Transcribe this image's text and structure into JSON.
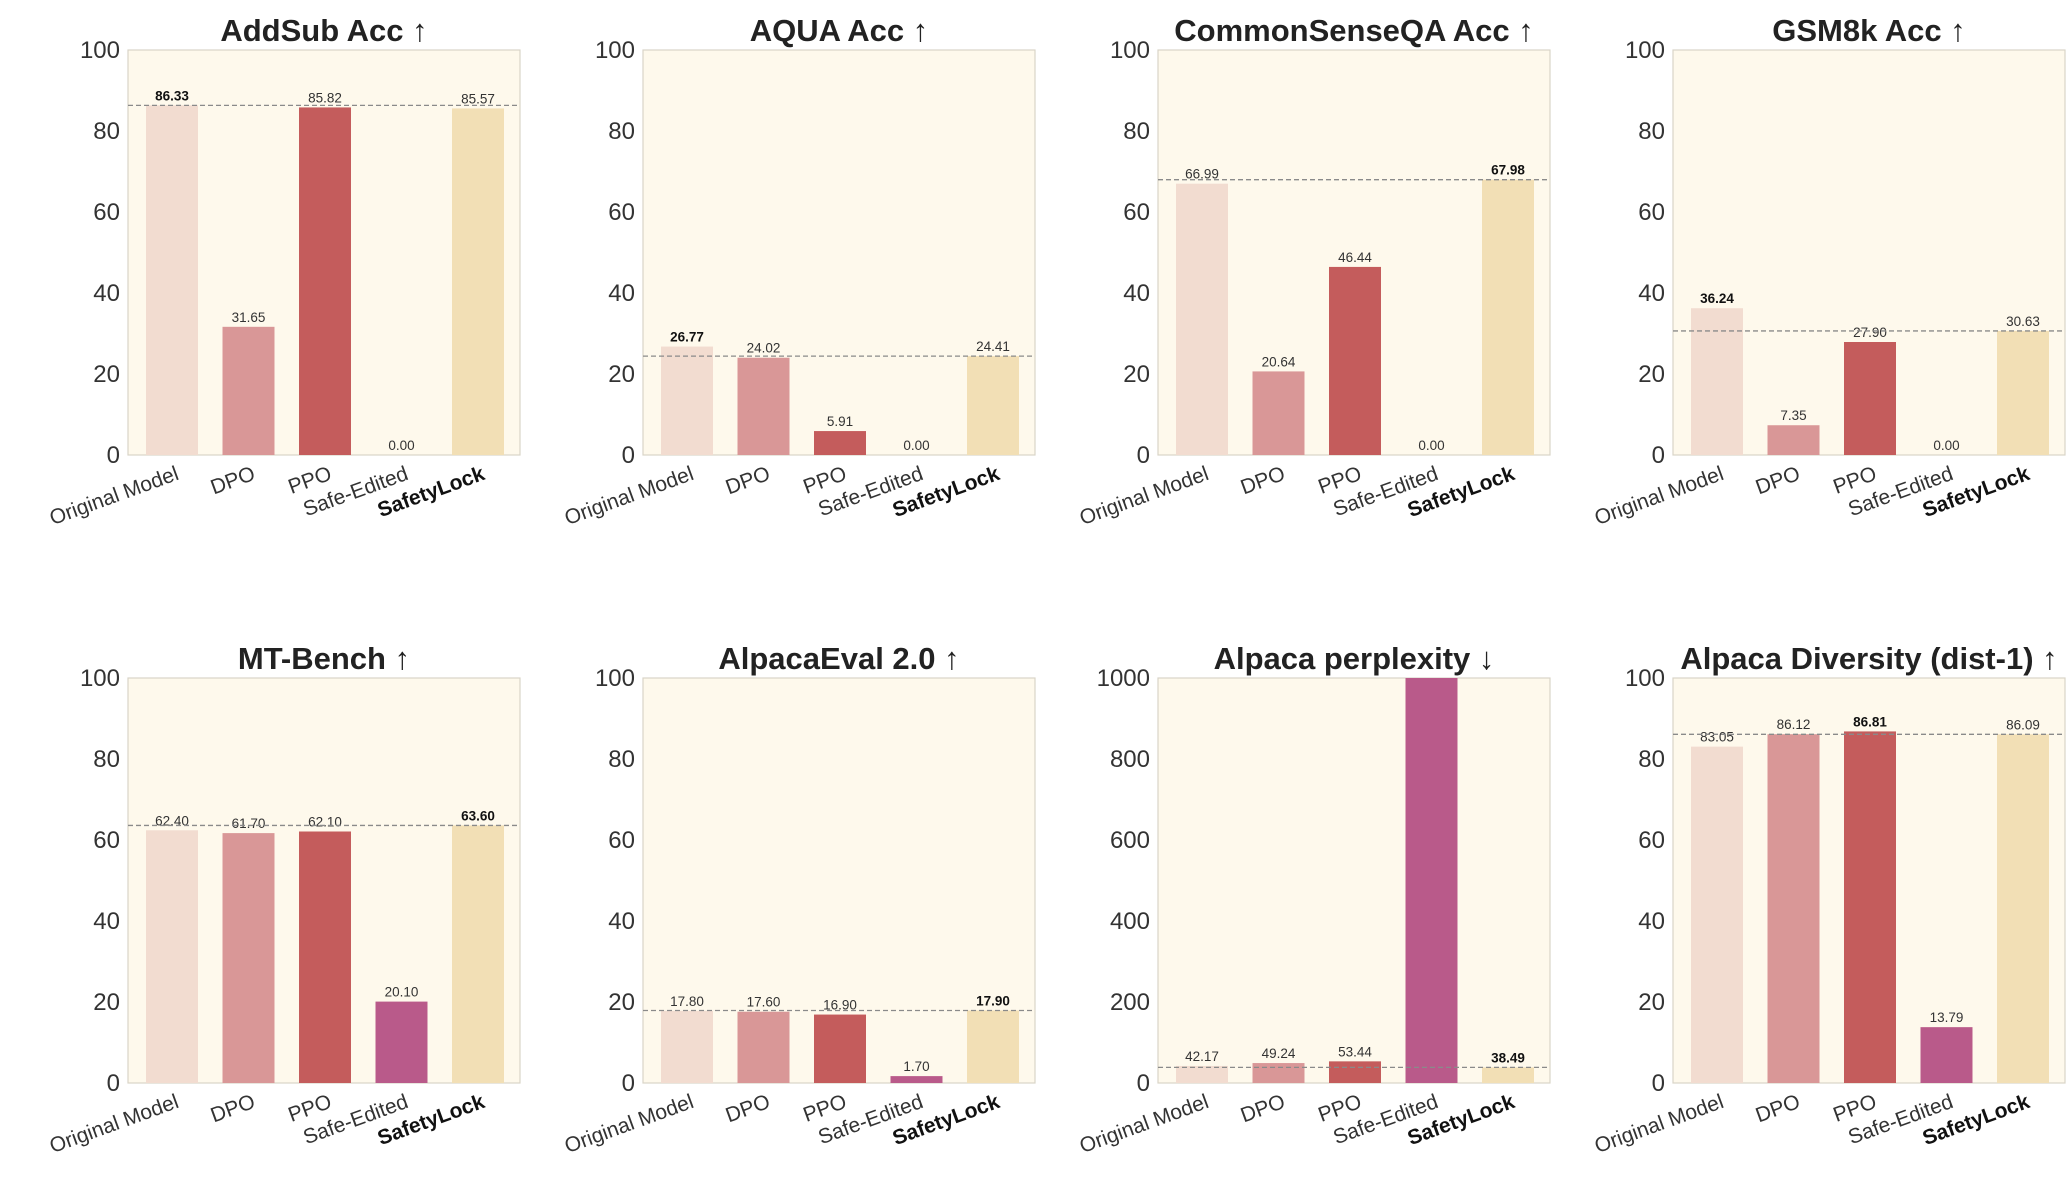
{
  "colors": {
    "plot_background": "#FEF9EC",
    "plot_border": "#D9D4C7",
    "reference_line": "#8A8A8A",
    "original_model": "#F2DCD0",
    "dpo": "#D99797",
    "ppo": "#C45C5C",
    "safe_edited": "#B95A8A",
    "safetylock": "#F2DFB5"
  },
  "chart_data": [
    {
      "type": "bar",
      "title": "AddSub Acc ↑",
      "categories": [
        "Original Model",
        "DPO",
        "PPO",
        "Safe-Edited",
        "SafetyLock"
      ],
      "bold_category": "SafetyLock",
      "values": [
        86.33,
        31.65,
        85.82,
        0.0,
        85.57
      ],
      "value_labels": [
        "86.33",
        "31.65",
        "85.82",
        "0.00",
        "85.57"
      ],
      "bold_value_index": 0,
      "reference_line": 86.33,
      "ylim": [
        0,
        100
      ],
      "yticks": [
        "0",
        "20",
        "40",
        "60",
        "80",
        "100"
      ],
      "grid": false
    },
    {
      "type": "bar",
      "title": "AQUA Acc ↑",
      "categories": [
        "Original Model",
        "DPO",
        "PPO",
        "Safe-Edited",
        "SafetyLock"
      ],
      "bold_category": "SafetyLock",
      "values": [
        26.77,
        24.02,
        5.91,
        0.0,
        24.41
      ],
      "value_labels": [
        "26.77",
        "24.02",
        "5.91",
        "0.00",
        "24.41"
      ],
      "bold_value_index": 0,
      "reference_line": 24.41,
      "ylim": [
        0,
        100
      ],
      "yticks": [
        "0",
        "20",
        "40",
        "60",
        "80",
        "100"
      ],
      "grid": false
    },
    {
      "type": "bar",
      "title": "CommonSenseQA Acc ↑",
      "categories": [
        "Original Model",
        "DPO",
        "PPO",
        "Safe-Edited",
        "SafetyLock"
      ],
      "bold_category": "SafetyLock",
      "values": [
        66.99,
        20.64,
        46.44,
        0.0,
        67.98
      ],
      "value_labels": [
        "66.99",
        "20.64",
        "46.44",
        "0.00",
        "67.98"
      ],
      "bold_value_index": 4,
      "reference_line": 67.98,
      "ylim": [
        0,
        100
      ],
      "yticks": [
        "0",
        "20",
        "40",
        "60",
        "80",
        "100"
      ],
      "grid": false
    },
    {
      "type": "bar",
      "title": "GSM8k Acc ↑",
      "categories": [
        "Original Model",
        "DPO",
        "PPO",
        "Safe-Edited",
        "SafetyLock"
      ],
      "bold_category": "SafetyLock",
      "values": [
        36.24,
        7.35,
        27.9,
        0.0,
        30.63
      ],
      "value_labels": [
        "36.24",
        "7.35",
        "27.90",
        "0.00",
        "30.63"
      ],
      "bold_value_index": 0,
      "reference_line": 30.63,
      "ylim": [
        0,
        100
      ],
      "yticks": [
        "0",
        "20",
        "40",
        "60",
        "80",
        "100"
      ],
      "grid": false
    },
    {
      "type": "bar",
      "title": "MT-Bench ↑",
      "categories": [
        "Original Model",
        "DPO",
        "PPO",
        "Safe-Edited",
        "SafetyLock"
      ],
      "bold_category": "SafetyLock",
      "values": [
        62.4,
        61.7,
        62.1,
        20.1,
        63.6
      ],
      "value_labels": [
        "62.40",
        "61.70",
        "62.10",
        "20.10",
        "63.60"
      ],
      "bold_value_index": 4,
      "reference_line": 63.6,
      "ylim": [
        0,
        100
      ],
      "yticks": [
        "0",
        "20",
        "40",
        "60",
        "80",
        "100"
      ],
      "grid": false
    },
    {
      "type": "bar",
      "title": "AlpacaEval 2.0 ↑",
      "categories": [
        "Original Model",
        "DPO",
        "PPO",
        "Safe-Edited",
        "SafetyLock"
      ],
      "bold_category": "SafetyLock",
      "values": [
        17.8,
        17.6,
        16.9,
        1.7,
        17.9
      ],
      "value_labels": [
        "17.80",
        "17.60",
        "16.90",
        "1.70",
        "17.90"
      ],
      "bold_value_index": 4,
      "reference_line": 17.9,
      "ylim": [
        0,
        100
      ],
      "yticks": [
        "0",
        "20",
        "40",
        "60",
        "80",
        "100"
      ],
      "grid": false
    },
    {
      "type": "bar",
      "title": "Alpaca perplexity ↓",
      "categories": [
        "Original Model",
        "DPO",
        "PPO",
        "Safe-Edited",
        "SafetyLock"
      ],
      "bold_category": "SafetyLock",
      "values": [
        42.17,
        49.24,
        53.44,
        1000,
        38.49
      ],
      "value_labels": [
        "42.17",
        "49.24",
        "53.44",
        "",
        "38.49"
      ],
      "bold_value_index": 4,
      "reference_line": 38.49,
      "ylim": [
        0,
        1000
      ],
      "yticks": [
        "0",
        "200",
        "400",
        "600",
        "800",
        "1000"
      ],
      "grid": false
    },
    {
      "type": "bar",
      "title": "Alpaca Diversity (dist-1) ↑",
      "categories": [
        "Original Model",
        "DPO",
        "PPO",
        "Safe-Edited",
        "SafetyLock"
      ],
      "bold_category": "SafetyLock",
      "values": [
        83.05,
        86.12,
        86.81,
        13.79,
        86.09
      ],
      "value_labels": [
        "83.05",
        "86.12",
        "86.81",
        "13.79",
        "86.09"
      ],
      "bold_value_index": 2,
      "reference_line": 86.09,
      "ylim": [
        0,
        100
      ],
      "yticks": [
        "0",
        "20",
        "40",
        "60",
        "80",
        "100"
      ],
      "grid": false
    }
  ]
}
